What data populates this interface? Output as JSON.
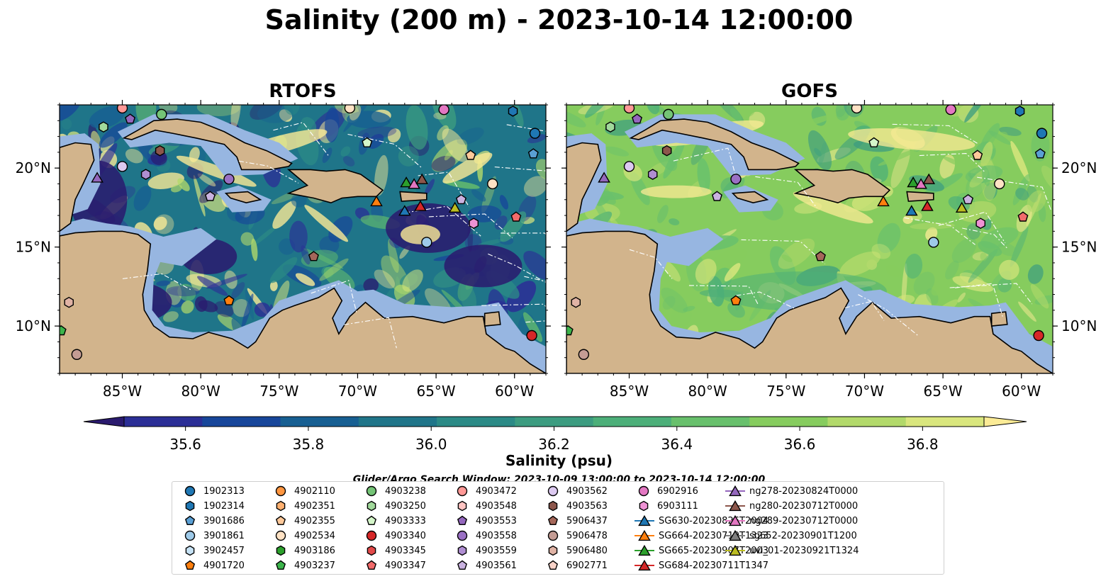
{
  "title": "Salinity (200 m) - 2023-10-14 12:00:00",
  "panels": [
    {
      "title": "RTOFS"
    },
    {
      "title": "GOFS"
    }
  ],
  "colorbar": {
    "label": "Salinity (psu)",
    "ticks": [
      "35.6",
      "35.8",
      "36.0",
      "36.2",
      "36.4",
      "36.6",
      "36.8"
    ],
    "tick_values": [
      35.6,
      35.8,
      36.0,
      36.2,
      36.4,
      36.6,
      36.8
    ],
    "range": [
      35.5,
      36.9
    ],
    "colors": [
      "#2a1a6e",
      "#2b2e96",
      "#17469a",
      "#175f92",
      "#1f7589",
      "#2b8a86",
      "#3c9c80",
      "#4caf79",
      "#68c06c",
      "#86cc5e",
      "#b2d96a",
      "#d9e67d",
      "#fbeb96"
    ]
  },
  "search_window": "Glider/Argo Search Window: 2023-10-09 13:00:00 to 2023-10-14 12:00:00",
  "axes": {
    "lon_ticks": [
      "85°W",
      "80°W",
      "75°W",
      "70°W",
      "65°W",
      "60°W"
    ],
    "lon_values": [
      -85,
      -80,
      -75,
      -70,
      -65,
      -60
    ],
    "lat_ticks": [
      "20°N",
      "15°N",
      "10°N"
    ],
    "lat_values": [
      20,
      15,
      10
    ],
    "lon_range": [
      -89,
      -58
    ],
    "lat_range": [
      7,
      24
    ]
  },
  "colors": {
    "land": "#d2b48c",
    "shelf": "#97b6e1"
  },
  "platforms": [
    {
      "name": "1902313",
      "marker": "circle",
      "color": "#1f77b4"
    },
    {
      "name": "1902314",
      "marker": "hexagon",
      "color": "#1f77b4"
    },
    {
      "name": "3901686",
      "marker": "pentagon",
      "color": "#5a9fd4"
    },
    {
      "name": "3901861",
      "marker": "circle",
      "color": "#9ecae9"
    },
    {
      "name": "3902457",
      "marker": "hexagon",
      "color": "#c6e2f5"
    },
    {
      "name": "4901720",
      "marker": "pentagon",
      "color": "#ff7f0e"
    },
    {
      "name": "4902110",
      "marker": "circle",
      "color": "#ff9640"
    },
    {
      "name": "4902351",
      "marker": "hexagon",
      "color": "#ffb070"
    },
    {
      "name": "4902355",
      "marker": "pentagon",
      "color": "#ffc99a"
    },
    {
      "name": "4902534",
      "marker": "circle",
      "color": "#ffe2c4"
    },
    {
      "name": "4903186",
      "marker": "hexagon",
      "color": "#2ca02c"
    },
    {
      "name": "4903237",
      "marker": "pentagon",
      "color": "#3cb44b"
    },
    {
      "name": "4903238",
      "marker": "circle",
      "color": "#74c476"
    },
    {
      "name": "4903250",
      "marker": "hexagon",
      "color": "#a1d99b"
    },
    {
      "name": "4903333",
      "marker": "pentagon",
      "color": "#d4f5c9"
    },
    {
      "name": "4903340",
      "marker": "circle",
      "color": "#d62728"
    },
    {
      "name": "4903345",
      "marker": "hexagon",
      "color": "#e34a4a"
    },
    {
      "name": "4903347",
      "marker": "pentagon",
      "color": "#f26b6b"
    },
    {
      "name": "4903472",
      "marker": "circle",
      "color": "#ff9896"
    },
    {
      "name": "4903548",
      "marker": "hexagon",
      "color": "#ffc4c2"
    },
    {
      "name": "4903553",
      "marker": "pentagon",
      "color": "#9467bd"
    },
    {
      "name": "4903558",
      "marker": "circle",
      "color": "#9a70c4"
    },
    {
      "name": "4903559",
      "marker": "hexagon",
      "color": "#b08ed2"
    },
    {
      "name": "4903561",
      "marker": "pentagon",
      "color": "#c9b2e0"
    },
    {
      "name": "4903562",
      "marker": "circle",
      "color": "#dcc9f0"
    },
    {
      "name": "4903563",
      "marker": "hexagon",
      "color": "#8c564b"
    },
    {
      "name": "5906437",
      "marker": "pentagon",
      "color": "#a5675a"
    },
    {
      "name": "5906478",
      "marker": "circle",
      "color": "#c49c94"
    },
    {
      "name": "5906480",
      "marker": "hexagon",
      "color": "#e0b3a5"
    },
    {
      "name": "6902771",
      "marker": "pentagon",
      "color": "#f9d3c8"
    },
    {
      "name": "6902916",
      "marker": "circle",
      "color": "#e377c2"
    },
    {
      "name": "6903111",
      "marker": "hexagon",
      "color": "#ee92d4"
    }
  ],
  "gliders": [
    {
      "name": "SG630-20230826T2004",
      "color": "#1f77b4"
    },
    {
      "name": "SG664-20230719T1323",
      "color": "#ff7f0e"
    },
    {
      "name": "SG665-20230907T2003",
      "color": "#2ca02c"
    },
    {
      "name": "SG684-20230711T1347",
      "color": "#d62728"
    },
    {
      "name": "ng278-20230824T0000",
      "color": "#9467bd"
    },
    {
      "name": "ng280-20230712T0000",
      "color": "#8c564b"
    },
    {
      "name": "ng289-20230712T0000",
      "color": "#e377c2"
    },
    {
      "name": "sg652-20230901T1200",
      "color": "#7f7f7f"
    },
    {
      "name": "uvi_01-20230921T1324",
      "color": "#bcbd22"
    }
  ],
  "markers_on_map": [
    {
      "lon": -85.0,
      "lat": 23.8,
      "color": "#ff9896",
      "marker": "circle"
    },
    {
      "lon": -84.5,
      "lat": 23.1,
      "color": "#9467bd",
      "marker": "pentagon"
    },
    {
      "lon": -86.2,
      "lat": 22.6,
      "color": "#a1d99b",
      "marker": "hexagon"
    },
    {
      "lon": -82.5,
      "lat": 23.4,
      "color": "#74c476",
      "marker": "circle"
    },
    {
      "lon": -82.6,
      "lat": 21.1,
      "color": "#8c564b",
      "marker": "hexagon"
    },
    {
      "lon": -85.0,
      "lat": 20.1,
      "color": "#dcc9f0",
      "marker": "circle"
    },
    {
      "lon": -83.5,
      "lat": 19.6,
      "color": "#b08ed2",
      "marker": "hexagon"
    },
    {
      "lon": -78.2,
      "lat": 19.3,
      "color": "#9a70c4",
      "marker": "circle"
    },
    {
      "lon": -79.4,
      "lat": 18.2,
      "color": "#c9b2e0",
      "marker": "pentagon"
    },
    {
      "lon": -70.5,
      "lat": 23.8,
      "color": "#ffe2c4",
      "marker": "circle"
    },
    {
      "lon": -69.4,
      "lat": 21.6,
      "color": "#d4f5c9",
      "marker": "pentagon"
    },
    {
      "lon": -64.5,
      "lat": 23.7,
      "color": "#e377c2",
      "marker": "circle"
    },
    {
      "lon": -60.1,
      "lat": 23.6,
      "color": "#1f77b4",
      "marker": "hexagon"
    },
    {
      "lon": -58.7,
      "lat": 22.2,
      "color": "#1f77b4",
      "marker": "circle"
    },
    {
      "lon": -58.8,
      "lat": 20.9,
      "color": "#5a9fd4",
      "marker": "pentagon"
    },
    {
      "lon": -62.8,
      "lat": 20.8,
      "color": "#ffc99a",
      "marker": "pentagon"
    },
    {
      "lon": -61.4,
      "lat": 19.0,
      "color": "#ffe2c4",
      "marker": "circle"
    },
    {
      "lon": -63.4,
      "lat": 18.0,
      "color": "#c9b2e0",
      "marker": "pentagon"
    },
    {
      "lon": -62.6,
      "lat": 16.5,
      "color": "#ee92d4",
      "marker": "hexagon"
    },
    {
      "lon": -59.9,
      "lat": 16.9,
      "color": "#f26b6b",
      "marker": "pentagon"
    },
    {
      "lon": -65.6,
      "lat": 15.3,
      "color": "#9ecae9",
      "marker": "circle"
    },
    {
      "lon": -72.8,
      "lat": 14.4,
      "color": "#a5675a",
      "marker": "pentagon"
    },
    {
      "lon": -78.2,
      "lat": 11.6,
      "color": "#ff7f0e",
      "marker": "pentagon"
    },
    {
      "lon": -88.4,
      "lat": 11.5,
      "color": "#e0b3a5",
      "marker": "hexagon"
    },
    {
      "lon": -88.9,
      "lat": 9.7,
      "color": "#3cb44b",
      "marker": "pentagon"
    },
    {
      "lon": -87.9,
      "lat": 8.2,
      "color": "#c49c94",
      "marker": "circle"
    },
    {
      "lon": -58.9,
      "lat": 9.4,
      "color": "#d62728",
      "marker": "circle"
    },
    {
      "lon": -86.6,
      "lat": 19.4,
      "color": "#9467bd",
      "marker": "triangle"
    },
    {
      "lon": -68.8,
      "lat": 17.9,
      "color": "#ff7f0e",
      "marker": "triangle"
    },
    {
      "lon": -67.0,
      "lat": 17.3,
      "color": "#1f77b4",
      "marker": "triangle"
    },
    {
      "lon": -66.0,
      "lat": 17.6,
      "color": "#d62728",
      "marker": "triangle"
    },
    {
      "lon": -66.9,
      "lat": 19.1,
      "color": "#2ca02c",
      "marker": "triangle"
    },
    {
      "lon": -66.4,
      "lat": 19.0,
      "color": "#e377c2",
      "marker": "triangle"
    },
    {
      "lon": -65.9,
      "lat": 19.3,
      "color": "#8c564b",
      "marker": "triangle"
    },
    {
      "lon": -63.8,
      "lat": 17.5,
      "color": "#bcbd22",
      "marker": "triangle"
    }
  ],
  "chart_data": {
    "type": "heatmap",
    "title": "Salinity (200 m) - 2023-10-14 12:00:00",
    "panels": [
      "RTOFS",
      "GOFS"
    ],
    "variable": "Salinity (psu)",
    "depth_m": 200,
    "time": "2023-10-14 12:00:00",
    "x_range": [
      -89,
      -58
    ],
    "y_range": [
      7,
      24
    ],
    "color_range": [
      35.5,
      36.9
    ],
    "colorbar_ticks": [
      35.6,
      35.8,
      36.0,
      36.2,
      36.4,
      36.6,
      36.8
    ]
  }
}
